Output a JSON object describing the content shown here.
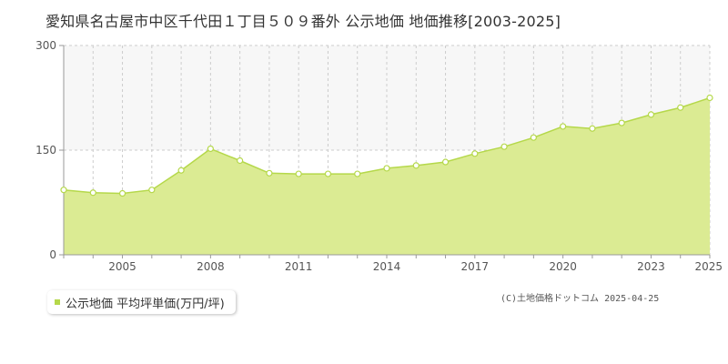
{
  "title": "愛知県名古屋市中区千代田１丁目５０９番外 公示地価 地価推移[2003-2025]",
  "legend": {
    "label": "公示地価 平均坪単価(万円/坪)"
  },
  "copyright": "(C)土地価格ドットコム 2025-04-25",
  "colors": {
    "fill": "#dbeb93",
    "line": "#b5d84a",
    "marker_fill": "#ffffff",
    "band": "#f7f7f7",
    "grid": "#cccccc",
    "axis": "#999999",
    "legend_swatch": "#b5d84a"
  },
  "chart_data": {
    "type": "area",
    "title": "愛知県名古屋市中区千代田１丁目５０９番外 公示地価 地価推移[2003-2025]",
    "xlabel": "",
    "ylabel": "",
    "x": [
      2003,
      2004,
      2005,
      2006,
      2007,
      2008,
      2009,
      2010,
      2011,
      2012,
      2013,
      2014,
      2015,
      2016,
      2017,
      2018,
      2019,
      2020,
      2021,
      2022,
      2023,
      2024,
      2025
    ],
    "series": [
      {
        "name": "公示地価 平均坪単価(万円/坪)",
        "values": [
          93,
          89,
          88,
          93,
          121,
          152,
          135,
          117,
          116,
          116,
          116,
          124,
          128,
          133,
          145,
          155,
          168,
          184,
          181,
          189,
          201,
          211,
          225
        ]
      }
    ],
    "xlim": [
      2003,
      2025
    ],
    "ylim": [
      0,
      300
    ],
    "y_ticks": [
      0,
      150,
      300
    ],
    "x_tick_labels": [
      "2005",
      "2008",
      "2011",
      "2014",
      "2017",
      "2020",
      "2023",
      "2025"
    ],
    "x_tick_values": [
      2005,
      2008,
      2011,
      2014,
      2017,
      2020,
      2023,
      2025
    ],
    "grid": true,
    "legend_position": "bottom-left"
  }
}
